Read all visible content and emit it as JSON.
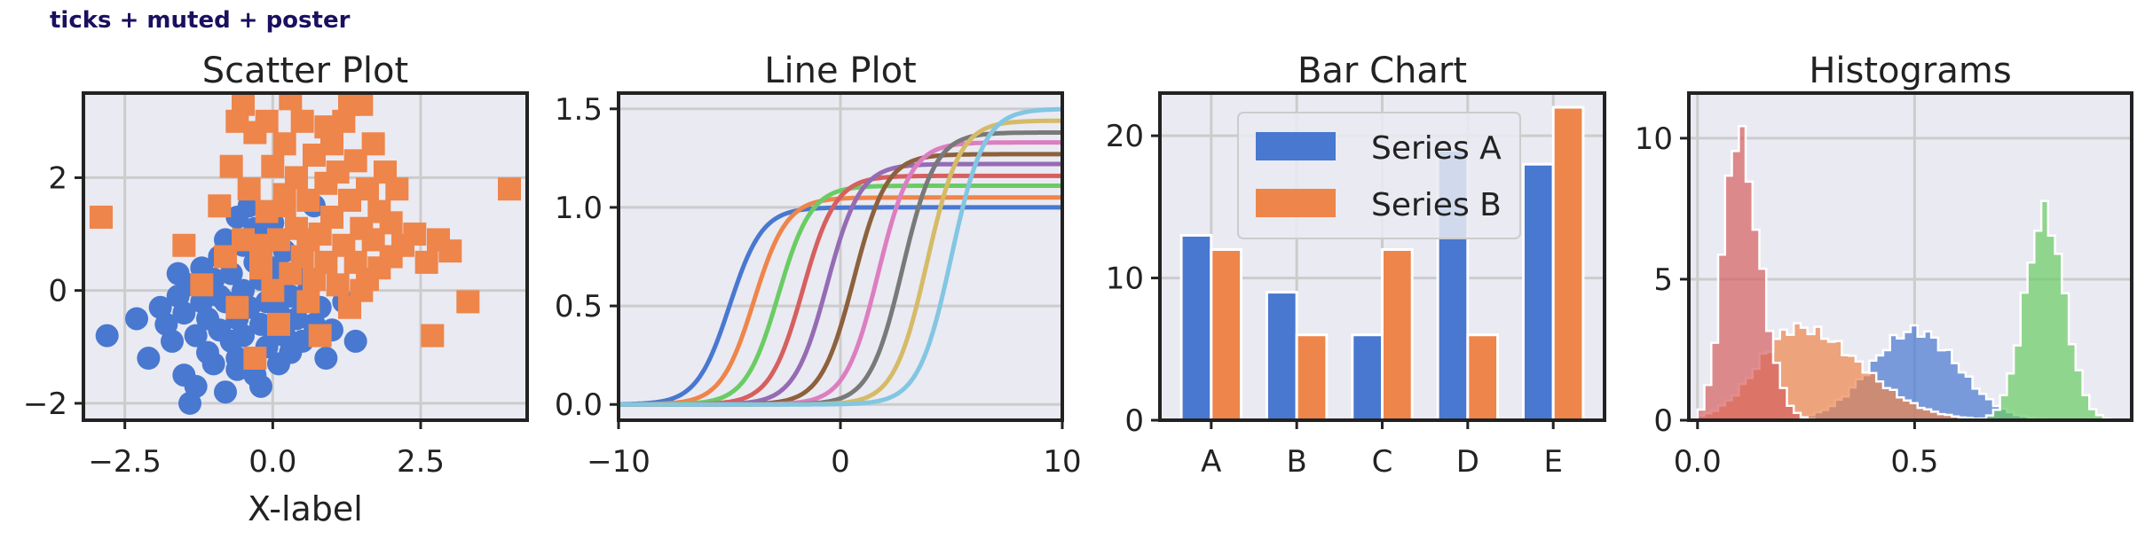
{
  "figure": {
    "suptitle": "ticks + muted + poster",
    "colors": {
      "blue": "#4878d0",
      "orange": "#ee854a",
      "green": "#6acc64",
      "red": "#d65f5f",
      "purple": "#956cb4",
      "brown": "#8c613c",
      "pink": "#dc7ec0",
      "gray": "#797979",
      "olive": "#d5bb67",
      "cyan": "#82c6e2",
      "axes_bg": "#eaeaf2",
      "grid": "#cccccc",
      "spine": "#222222"
    }
  },
  "chart_data": [
    {
      "type": "scatter",
      "title": "Scatter Plot",
      "xlabel": "X-label",
      "ylabel": "",
      "xlim": [
        -3.2,
        4.3
      ],
      "ylim": [
        -2.3,
        3.5
      ],
      "xticks": [
        -2.5,
        0.0,
        2.5
      ],
      "xtick_labels": [
        "−2.5",
        "0.0",
        "2.5"
      ],
      "yticks": [
        -2,
        0,
        2
      ],
      "ytick_labels": [
        "−2",
        "0",
        "2"
      ],
      "grid": true,
      "series": [
        {
          "marker": "circle",
          "color": "blue",
          "points": [
            [
              -2.8,
              -0.8
            ],
            [
              -2.3,
              -0.5
            ],
            [
              -2.1,
              -1.2
            ],
            [
              -1.9,
              -0.3
            ],
            [
              -1.8,
              -0.6
            ],
            [
              -1.7,
              -0.9
            ],
            [
              -1.6,
              -0.1
            ],
            [
              -1.5,
              -1.5
            ],
            [
              -1.5,
              -0.4
            ],
            [
              -1.4,
              0.1
            ],
            [
              -1.4,
              -2.0
            ],
            [
              -1.3,
              -0.8
            ],
            [
              -1.2,
              -0.2
            ],
            [
              -1.2,
              0.4
            ],
            [
              -1.1,
              -1.1
            ],
            [
              -1.1,
              -0.5
            ],
            [
              -1.0,
              0.2
            ],
            [
              -1.0,
              -1.3
            ],
            [
              -0.9,
              -0.7
            ],
            [
              -0.9,
              0.6
            ],
            [
              -0.8,
              -0.2
            ],
            [
              -0.8,
              -1.8
            ],
            [
              -0.8,
              0.9
            ],
            [
              -0.7,
              -0.9
            ],
            [
              -0.7,
              0.3
            ],
            [
              -0.6,
              -0.5
            ],
            [
              -0.6,
              1.3
            ],
            [
              -0.6,
              -1.2
            ],
            [
              -0.5,
              0.0
            ],
            [
              -0.5,
              0.8
            ],
            [
              -0.5,
              -0.8
            ],
            [
              -0.4,
              1.5
            ],
            [
              -0.4,
              -0.3
            ],
            [
              -0.3,
              -1.5
            ],
            [
              -0.3,
              0.5
            ],
            [
              -0.3,
              1.1
            ],
            [
              -0.2,
              -0.6
            ],
            [
              -0.2,
              0.2
            ],
            [
              -0.2,
              0.9
            ],
            [
              -0.1,
              -1.0
            ],
            [
              -0.1,
              -0.2
            ],
            [
              0.0,
              0.4
            ],
            [
              0.0,
              -0.7
            ],
            [
              0.0,
              1.2
            ],
            [
              0.1,
              -0.4
            ],
            [
              0.1,
              0.1
            ],
            [
              0.1,
              -1.3
            ],
            [
              0.2,
              0.7
            ],
            [
              0.2,
              -0.8
            ],
            [
              0.3,
              -0.1
            ],
            [
              0.3,
              -1.1
            ],
            [
              0.4,
              0.3
            ],
            [
              0.4,
              -0.5
            ],
            [
              0.5,
              -0.9
            ],
            [
              0.6,
              0.0
            ],
            [
              0.7,
              -0.6
            ],
            [
              0.8,
              -0.3
            ],
            [
              0.9,
              -1.2
            ],
            [
              1.0,
              -0.7
            ],
            [
              1.2,
              -0.2
            ],
            [
              1.4,
              -0.9
            ],
            [
              -0.6,
              -1.4
            ],
            [
              -0.2,
              -1.7
            ],
            [
              0.7,
              1.5
            ],
            [
              -1.6,
              0.3
            ],
            [
              -0.9,
              -0.1
            ],
            [
              0.5,
              -0.2
            ],
            [
              -1.3,
              -1.7
            ]
          ]
        },
        {
          "marker": "square",
          "color": "orange",
          "points": [
            [
              -2.9,
              1.3
            ],
            [
              -1.5,
              0.8
            ],
            [
              -1.2,
              0.1
            ],
            [
              -0.9,
              1.5
            ],
            [
              -0.8,
              0.6
            ],
            [
              -0.7,
              2.2
            ],
            [
              -0.6,
              -0.3
            ],
            [
              -0.5,
              0.9
            ],
            [
              -0.5,
              3.3
            ],
            [
              -0.4,
              1.8
            ],
            [
              -0.3,
              -1.2
            ],
            [
              -0.3,
              2.8
            ],
            [
              -0.2,
              0.4
            ],
            [
              -0.1,
              1.4
            ],
            [
              -0.1,
              3.0
            ],
            [
              0.0,
              0.0
            ],
            [
              0.0,
              2.2
            ],
            [
              0.1,
              -0.6
            ],
            [
              0.1,
              0.9
            ],
            [
              0.2,
              2.6
            ],
            [
              0.2,
              1.5
            ],
            [
              0.3,
              3.4
            ],
            [
              0.3,
              0.3
            ],
            [
              0.4,
              1.1
            ],
            [
              0.4,
              2.0
            ],
            [
              0.5,
              0.6
            ],
            [
              0.5,
              3.0
            ],
            [
              0.6,
              -0.2
            ],
            [
              0.6,
              1.6
            ],
            [
              0.7,
              0.2
            ],
            [
              0.7,
              2.4
            ],
            [
              0.8,
              1.0
            ],
            [
              0.8,
              -0.8
            ],
            [
              0.9,
              1.9
            ],
            [
              0.9,
              0.5
            ],
            [
              1.0,
              2.6
            ],
            [
              1.0,
              1.3
            ],
            [
              1.1,
              0.1
            ],
            [
              1.1,
              2.1
            ],
            [
              1.2,
              0.8
            ],
            [
              1.2,
              3.0
            ],
            [
              1.3,
              1.6
            ],
            [
              1.3,
              -0.3
            ],
            [
              1.4,
              0.5
            ],
            [
              1.4,
              2.3
            ],
            [
              1.5,
              1.1
            ],
            [
              1.5,
              3.3
            ],
            [
              1.6,
              0.2
            ],
            [
              1.6,
              1.8
            ],
            [
              1.7,
              0.9
            ],
            [
              1.7,
              2.6
            ],
            [
              1.8,
              0.4
            ],
            [
              1.8,
              1.4
            ],
            [
              1.9,
              2.1
            ],
            [
              2.0,
              0.6
            ],
            [
              2.0,
              1.2
            ],
            [
              2.1,
              1.8
            ],
            [
              2.2,
              0.8
            ],
            [
              2.4,
              1.0
            ],
            [
              2.6,
              0.5
            ],
            [
              2.8,
              0.9
            ],
            [
              3.0,
              0.7
            ],
            [
              3.3,
              -0.2
            ],
            [
              2.7,
              -0.8
            ],
            [
              4.0,
              1.8
            ],
            [
              1.3,
              3.3
            ],
            [
              -0.6,
              3.0
            ],
            [
              0.9,
              2.9
            ],
            [
              0.2,
              1.7
            ],
            [
              -0.2,
              0.8
            ],
            [
              1.5,
              0.0
            ],
            [
              0.6,
              0.9
            ]
          ]
        }
      ]
    },
    {
      "type": "line",
      "title": "Line Plot",
      "xlabel": "",
      "ylabel": "",
      "xlim": [
        -10,
        10
      ],
      "ylim": [
        -0.08,
        1.58
      ],
      "xticks": [
        -10,
        0,
        10
      ],
      "xtick_labels": [
        "−10",
        "0",
        "10"
      ],
      "yticks": [
        0.0,
        0.5,
        1.0,
        1.5
      ],
      "ytick_labels": [
        "0.0",
        "0.5",
        "1.0",
        "1.5"
      ],
      "grid": true,
      "series": [
        {
          "color": "blue",
          "center": -5.0,
          "top": 1.0
        },
        {
          "color": "orange",
          "center": -3.9,
          "top": 1.05
        },
        {
          "color": "green",
          "center": -2.8,
          "top": 1.11
        },
        {
          "color": "red",
          "center": -1.7,
          "top": 1.16
        },
        {
          "color": "purple",
          "center": -0.6,
          "top": 1.22
        },
        {
          "color": "brown",
          "center": 0.6,
          "top": 1.27
        },
        {
          "color": "pink",
          "center": 1.7,
          "top": 1.33
        },
        {
          "color": "gray",
          "center": 2.8,
          "top": 1.38
        },
        {
          "color": "olive",
          "center": 3.9,
          "top": 1.44
        },
        {
          "color": "cyan",
          "center": 5.0,
          "top": 1.5
        }
      ]
    },
    {
      "type": "bar",
      "title": "Bar Chart",
      "xlabel": "",
      "ylabel": "",
      "categories": [
        "A",
        "B",
        "C",
        "D",
        "E"
      ],
      "ylim": [
        0,
        23
      ],
      "yticks": [
        0,
        10,
        20
      ],
      "ytick_labels": [
        "0",
        "10",
        "20"
      ],
      "grid": true,
      "legend_position": "top-center",
      "series": [
        {
          "name": "Series A",
          "color": "blue",
          "values": [
            13,
            9,
            6,
            19,
            18
          ]
        },
        {
          "name": "Series B",
          "color": "orange",
          "values": [
            12,
            6,
            12,
            6,
            22
          ]
        }
      ]
    },
    {
      "type": "histogram",
      "title": "Histograms",
      "xlabel": "",
      "ylabel": "",
      "xlim": [
        -0.02,
        1.0
      ],
      "ylim": [
        0,
        11.6
      ],
      "xticks": [
        0.0,
        0.5
      ],
      "xtick_labels": [
        "0.0",
        "0.5"
      ],
      "yticks": [
        0,
        5,
        10
      ],
      "ytick_labels": [
        "0",
        "5",
        "10"
      ],
      "grid": true,
      "series": [
        {
          "color": "blue",
          "mean": 0.5,
          "sd": 0.1,
          "peak": 3.4
        },
        {
          "color": "orange",
          "mean": 0.23,
          "sd": 0.09,
          "peak": 3.5,
          "skew": true
        },
        {
          "color": "red",
          "mean": 0.09,
          "sd": 0.032,
          "peak": 10.8,
          "skew": true
        },
        {
          "color": "green",
          "mean": 0.8,
          "sd": 0.046,
          "peak": 7.8
        }
      ]
    }
  ]
}
